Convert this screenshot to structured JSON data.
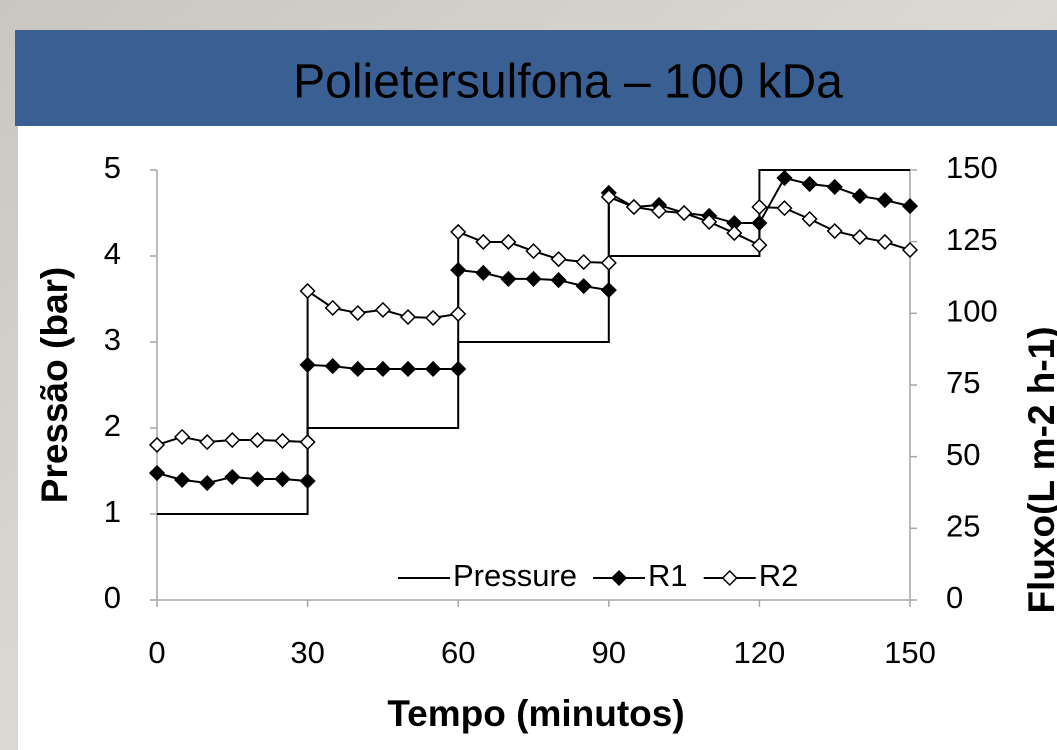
{
  "chart_data": {
    "type": "line",
    "title": "Polietersulfona – 100 kDa",
    "xlabel": "Tempo (minutos)",
    "ylabel": "Pressão (bar)",
    "y2label": "Fluxo(L m-2 h-1)",
    "xlim": [
      0,
      150
    ],
    "xticks": [
      0,
      30,
      60,
      90,
      120,
      150
    ],
    "ylim": [
      0,
      5
    ],
    "yticks": [
      0,
      1,
      2,
      3,
      4,
      5
    ],
    "y2lim": [
      0,
      150
    ],
    "y2ticks": [
      0,
      25,
      50,
      75,
      100,
      125,
      150
    ],
    "grid": false,
    "legend": "lower right",
    "series": [
      {
        "name": "Pressure",
        "color": "#000000",
        "marker": "none",
        "x": [
          0,
          30,
          30,
          60,
          60,
          90,
          90,
          120,
          120,
          150
        ],
        "values": [
          1,
          1,
          2,
          2,
          3,
          3,
          4,
          4,
          5,
          5
        ]
      },
      {
        "name": "R1",
        "color": "#000000",
        "marker": "filled",
        "axis": "y2",
        "x": [
          0,
          5,
          10,
          15,
          20,
          25,
          30,
          30,
          35,
          40,
          45,
          50,
          55,
          60,
          60,
          65,
          70,
          75,
          80,
          85,
          90,
          90,
          95,
          100,
          105,
          110,
          115,
          120,
          125,
          130,
          135,
          140,
          145,
          150
        ],
        "values": [
          44.3,
          41.9,
          40.8,
          42.9,
          42.2,
          42.2,
          41.5,
          82,
          81.6,
          80.6,
          80.6,
          80.6,
          80.6,
          80.6,
          115.1,
          114.1,
          112,
          112,
          111.6,
          109.5,
          108.1,
          142,
          137.1,
          137.8,
          135,
          134,
          131.5,
          131.5,
          147.2,
          145.1,
          144.1,
          140.9,
          139.5,
          137.4
        ]
      },
      {
        "name": "R2",
        "color": "#000000",
        "marker": "open",
        "axis": "y2",
        "x": [
          0,
          5,
          10,
          15,
          20,
          25,
          30,
          30,
          35,
          40,
          45,
          50,
          55,
          60,
          60,
          65,
          70,
          75,
          80,
          85,
          90,
          90,
          95,
          100,
          105,
          110,
          115,
          120,
          120,
          125,
          130,
          135,
          140,
          145,
          150
        ],
        "values": [
          54.1,
          56.9,
          55.1,
          55.8,
          55.8,
          55.5,
          55.1,
          107.8,
          101.9,
          100.1,
          101.2,
          98.7,
          98.4,
          99.8,
          128.4,
          124.9,
          124.9,
          121.7,
          118.9,
          117.9,
          117.6,
          140.6,
          137.1,
          135.7,
          135,
          131.9,
          128,
          123.8,
          137.1,
          136.7,
          132.9,
          128.7,
          126.6,
          124.9,
          122.1
        ]
      }
    ]
  }
}
